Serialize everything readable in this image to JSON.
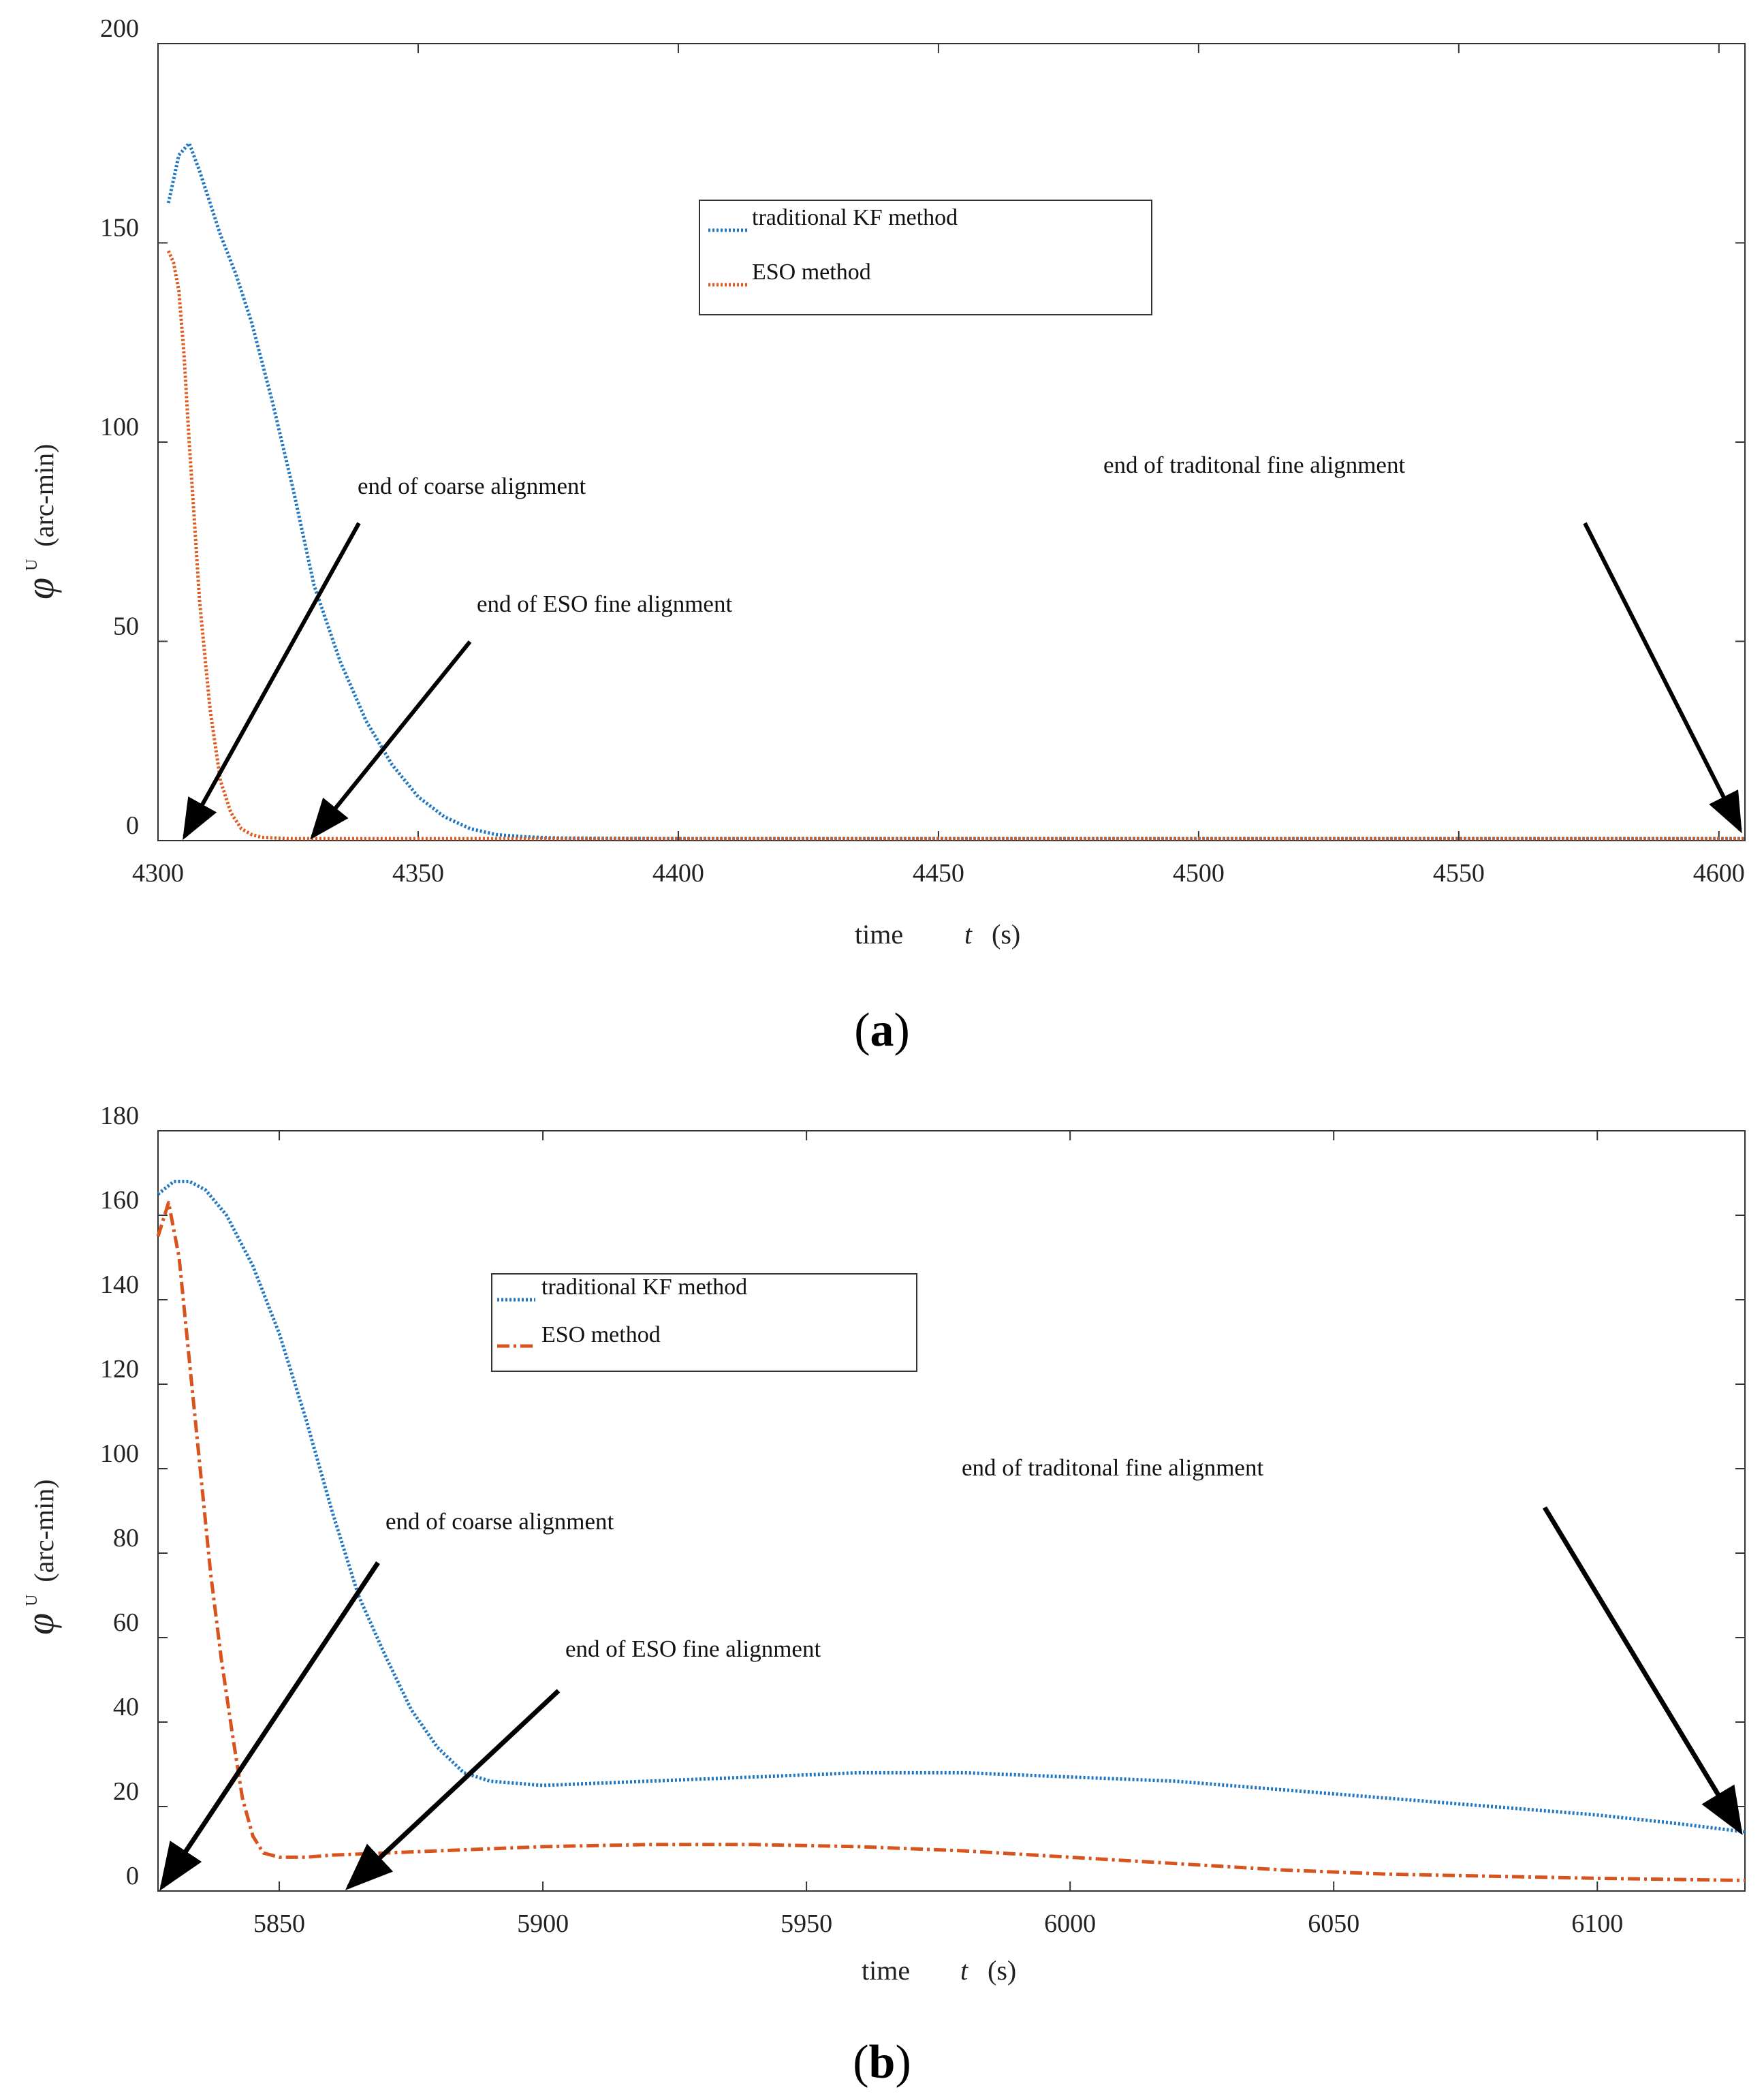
{
  "chart_data": [
    {
      "panel": "a",
      "caption_open": "(",
      "caption_letter": "a",
      "caption_close": ")",
      "type": "line",
      "xlabel": "time",
      "xvar": "t",
      "xunit": "(s)",
      "ylabel_symbol": "φ",
      "ylabel_sup": "U",
      "ylabel_unit": "(arc-min)",
      "xlim": [
        4300,
        4605
      ],
      "ylim": [
        0,
        200
      ],
      "xticks": [
        4300,
        4350,
        4400,
        4450,
        4500,
        4550,
        4600
      ],
      "yticks": [
        0,
        50,
        100,
        150,
        200
      ],
      "series": [
        {
          "name": "traditional KF method",
          "color": "#1f77c4",
          "style": "dotted",
          "x": [
            4302,
            4304,
            4306,
            4308,
            4310,
            4312,
            4315,
            4318,
            4322,
            4326,
            4330,
            4335,
            4340,
            4345,
            4350,
            4355,
            4360,
            4365,
            4370,
            4375,
            4380,
            4400,
            4500,
            4605
          ],
          "y": [
            160,
            172,
            175,
            168,
            160,
            152,
            142,
            130,
            110,
            88,
            64,
            45,
            30,
            19,
            11,
            6,
            3,
            1.5,
            1,
            0.7,
            0.6,
            0.5,
            0.5,
            0.5
          ]
        },
        {
          "name": "ESO method",
          "color": "#e05a1e",
          "style": "dotted",
          "x": [
            4302,
            4303,
            4304,
            4305,
            4306,
            4307,
            4308,
            4310,
            4312,
            4314,
            4316,
            4318,
            4320,
            4325,
            4330,
            4400,
            4500,
            4605
          ],
          "y": [
            148,
            145,
            138,
            122,
            100,
            80,
            60,
            33,
            15,
            7,
            3,
            1.5,
            0.8,
            0.5,
            0.5,
            0.5,
            0.5,
            0.5
          ]
        }
      ],
      "annotations": [
        {
          "text": "end of coarse alignment",
          "x": 4307
        },
        {
          "text": "end of ESO fine alignment",
          "x": 4331
        },
        {
          "text": "end of traditonal fine alignment",
          "x": 4605
        }
      ]
    },
    {
      "panel": "b",
      "caption_open": "(",
      "caption_letter": "b",
      "caption_close": ")",
      "type": "line",
      "xlabel": "time",
      "xvar": "t",
      "xunit": "(s)",
      "ylabel_symbol": "φ",
      "ylabel_sup": "U",
      "ylabel_unit": "(arc-min)",
      "xlim": [
        5827,
        6128
      ],
      "ylim": [
        0,
        180
      ],
      "xticks": [
        5850,
        5900,
        5950,
        6000,
        6050,
        6100
      ],
      "yticks": [
        0,
        20,
        40,
        60,
        80,
        100,
        120,
        140,
        160,
        180
      ],
      "series": [
        {
          "name": "traditional KF method",
          "color": "#1f77c4",
          "style": "dotted",
          "x": [
            5827,
            5830,
            5833,
            5836,
            5840,
            5845,
            5850,
            5855,
            5860,
            5865,
            5870,
            5875,
            5880,
            5885,
            5890,
            5900,
            5920,
            5940,
            5960,
            5980,
            6000,
            6020,
            6040,
            6060,
            6080,
            6100,
            6115,
            6128
          ],
          "y": [
            165,
            168,
            168,
            166,
            160,
            148,
            132,
            112,
            90,
            70,
            56,
            43,
            34,
            28,
            26,
            25,
            26,
            27,
            28,
            28,
            27,
            26,
            24,
            22,
            20,
            18,
            16,
            14
          ]
        },
        {
          "name": "ESO method",
          "color": "#d9531c",
          "style": "dashdot",
          "x": [
            5827,
            5829,
            5831,
            5833,
            5835,
            5837,
            5839,
            5841,
            5843,
            5845,
            5847,
            5850,
            5855,
            5860,
            5880,
            5900,
            5920,
            5940,
            5960,
            5980,
            6000,
            6020,
            6040,
            6060,
            6080,
            6100,
            6128
          ],
          "y": [
            155,
            163,
            150,
            125,
            100,
            75,
            55,
            38,
            22,
            13,
            9,
            8,
            8,
            8.5,
            9.5,
            10.5,
            11,
            11,
            10.5,
            9.5,
            8,
            6.5,
            5,
            4,
            3.5,
            3,
            2.5
          ]
        }
      ],
      "annotations": [
        {
          "text": "end of coarse alignment",
          "x": 5827
        },
        {
          "text": "end of ESO fine alignment",
          "x": 5862
        },
        {
          "text": "end of traditonal fine alignment",
          "x": 6128
        }
      ]
    }
  ]
}
